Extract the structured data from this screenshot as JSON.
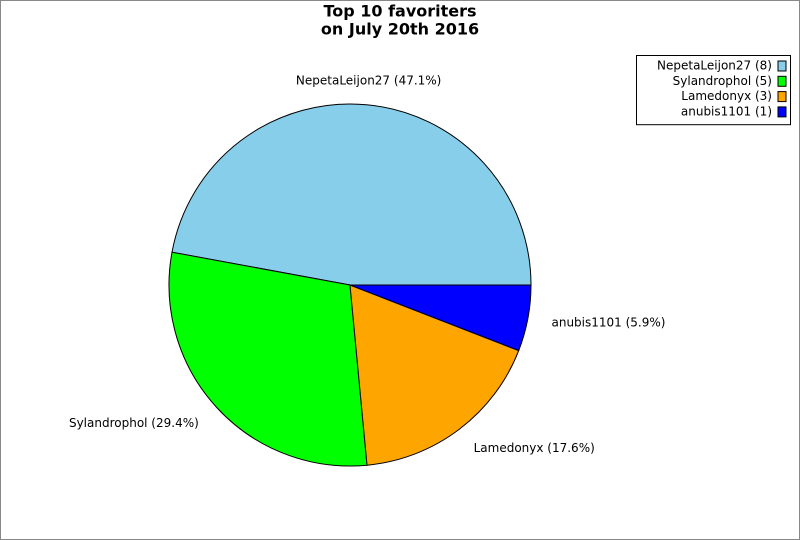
{
  "chart_data": {
    "type": "pie",
    "title": "Top 10 favoriters",
    "subtitle": "on July 20th 2016",
    "values": [
      47.1,
      29.4,
      17.6,
      5.9
    ],
    "value_labels": [
      "NepetaLeijon27 (47.1%)",
      "Sylandrophol (29.4%)",
      "Lamedonyx (17.6%)",
      "anubis1101 (5.9%)"
    ],
    "legend_labels": [
      "NepetaLeijon27 (8)",
      "Sylandrophol (5)",
      "Lamedonyx (3)",
      "anubis1101 (1)"
    ],
    "colors": [
      "#87ceeb",
      "#00ff00",
      "#ffa500",
      "#0000ff"
    ],
    "legend": "upper right"
  }
}
